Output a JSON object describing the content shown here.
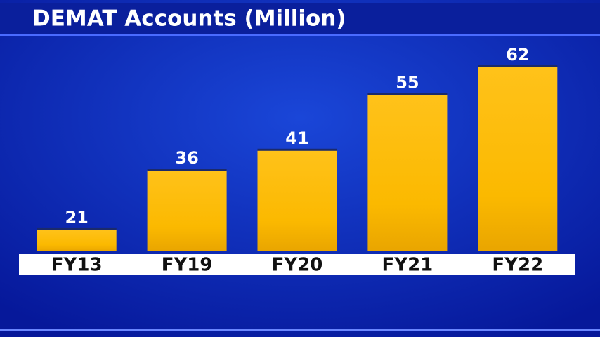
{
  "chart_data": {
    "type": "bar",
    "title": "DEMAT Accounts (Million)",
    "categories": [
      "FY13",
      "FY19",
      "FY20",
      "FY21",
      "FY22"
    ],
    "values": [
      21,
      36,
      41,
      55,
      62
    ],
    "color": "#fbbc04",
    "ylim": [
      15.5,
      62
    ]
  }
}
